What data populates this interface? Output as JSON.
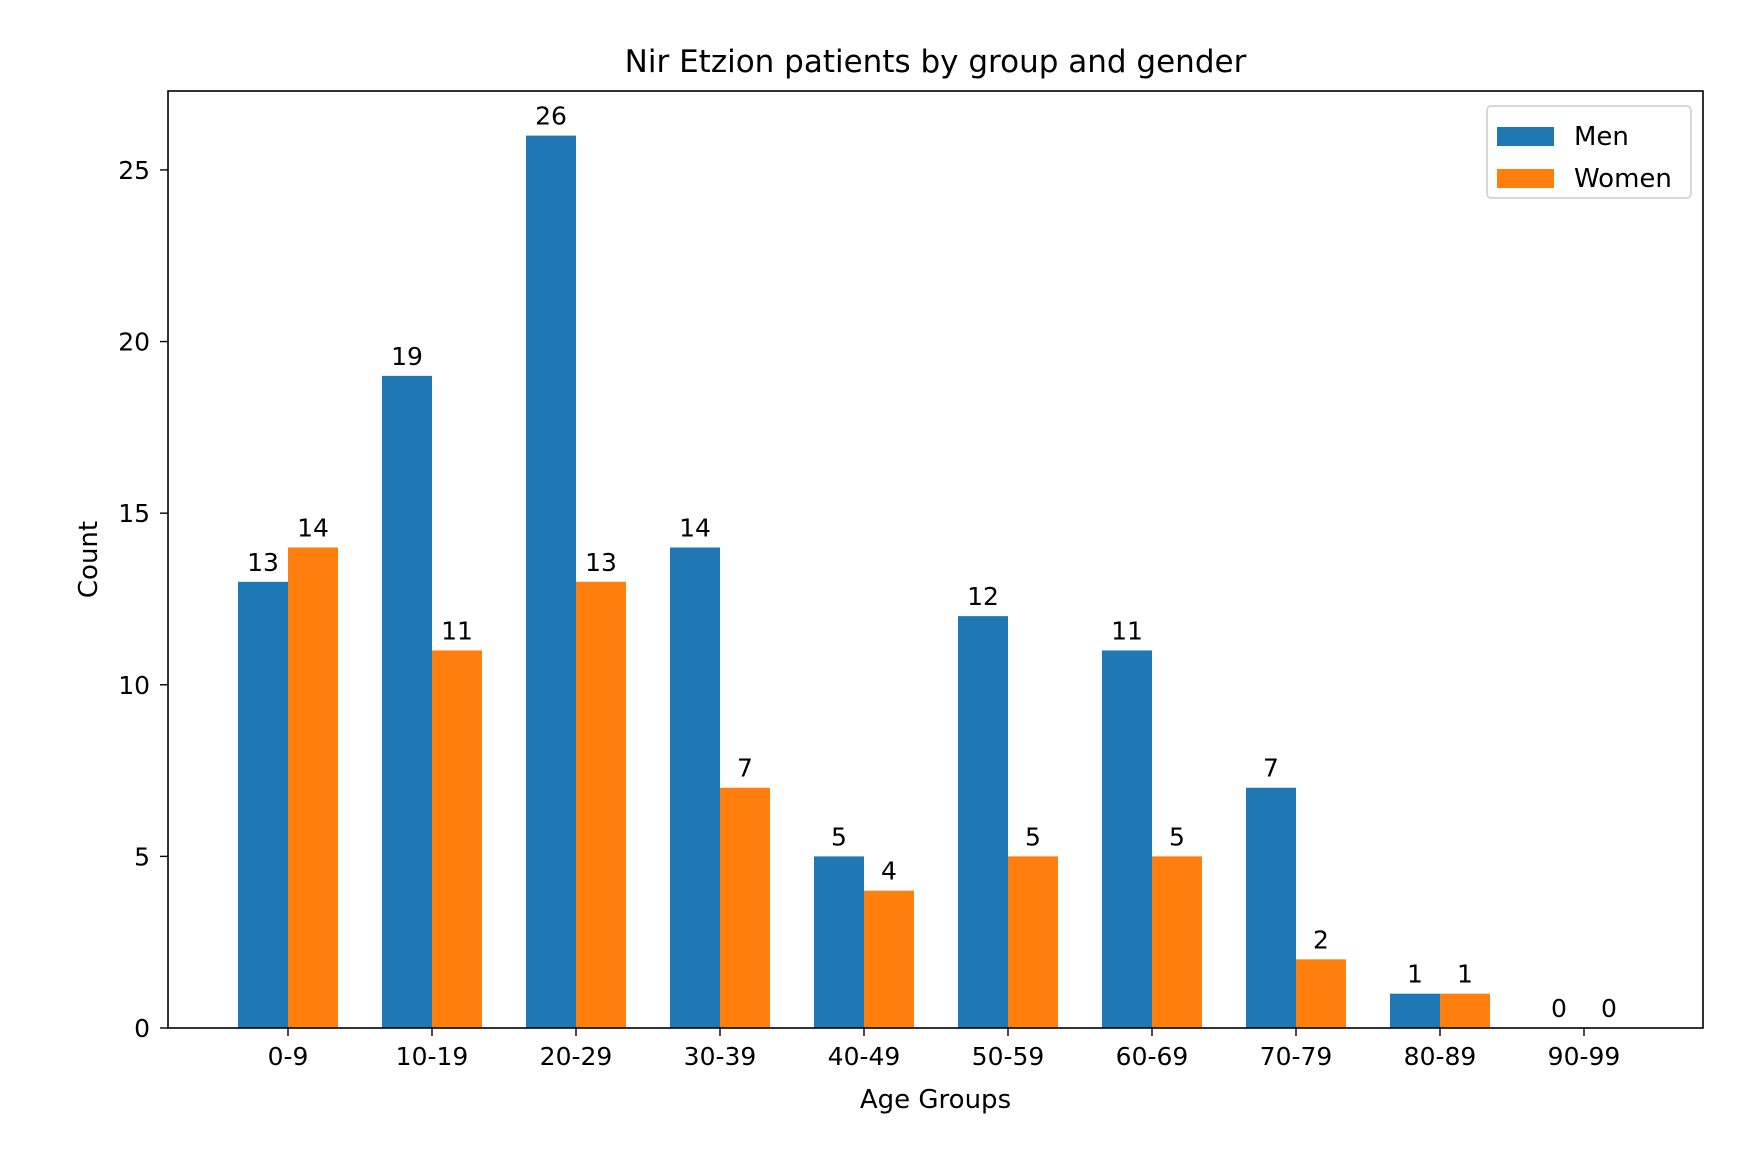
{
  "chart_data": {
    "type": "bar",
    "title": "Nir Etzion patients by group and gender",
    "xlabel": "Age Groups",
    "ylabel": "Count",
    "categories": [
      "0-9",
      "10-19",
      "20-29",
      "30-39",
      "40-49",
      "50-59",
      "60-69",
      "70-79",
      "80-89",
      "90-99"
    ],
    "series": [
      {
        "name": "Men",
        "values": [
          13,
          19,
          26,
          14,
          5,
          12,
          11,
          7,
          1,
          0
        ],
        "color": "#1f77b4",
        "labels": [
          "13",
          "19",
          "26",
          "14",
          "5",
          "12",
          "11",
          "7",
          "1",
          "0"
        ]
      },
      {
        "name": "Women",
        "values": [
          14,
          11,
          13,
          7,
          4,
          5,
          5,
          2,
          1,
          0
        ],
        "color": "#ff7f0e",
        "labels": [
          "14",
          "11",
          "13",
          "7",
          "4",
          "5",
          "5",
          "2",
          "1",
          "0"
        ]
      }
    ],
    "ylim": [
      0,
      27.3
    ],
    "yticks": [
      0,
      5,
      10,
      15,
      20,
      25
    ],
    "ytick_labels": [
      "0",
      "5",
      "10",
      "15",
      "20",
      "25"
    ],
    "legend": {
      "position": "top-right",
      "entries": [
        "Men",
        "Women"
      ]
    },
    "grid": false
  }
}
